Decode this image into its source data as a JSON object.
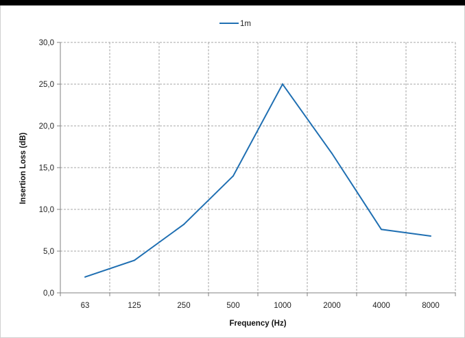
{
  "chart_data": {
    "type": "line",
    "categories": [
      "63",
      "125",
      "250",
      "500",
      "1000",
      "2000",
      "4000",
      "8000"
    ],
    "series": [
      {
        "name": "1m",
        "color": "#1f6fb2",
        "values": [
          1.9,
          3.9,
          8.2,
          14.0,
          25.0,
          16.7,
          7.6,
          6.8
        ]
      }
    ],
    "xlabel": "Frequency (Hz)",
    "ylabel": "Insertion Loss (dB)",
    "ylim": [
      0,
      30
    ],
    "yticks": [
      "0,0",
      "5,0",
      "10,0",
      "15,0",
      "20,0",
      "25,0",
      "30,0"
    ],
    "ytick_values": [
      0,
      5,
      10,
      15,
      20,
      25,
      30
    ],
    "grid": true,
    "grid_style": "dashed",
    "legend_position": "top-center"
  }
}
